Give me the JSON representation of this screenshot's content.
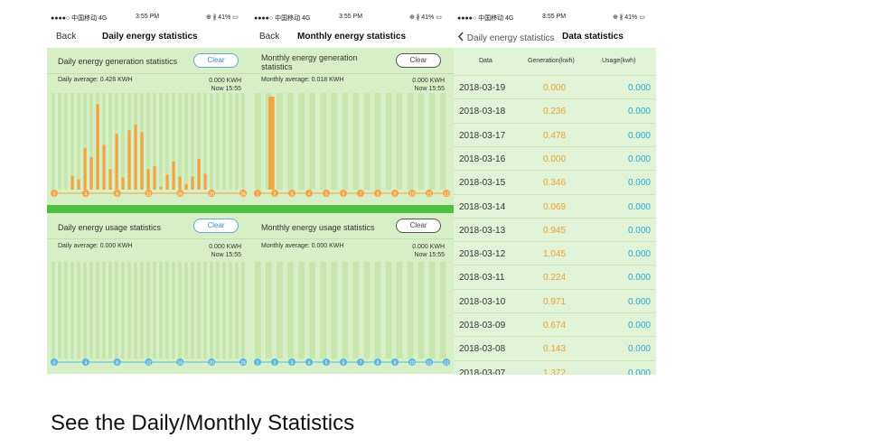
{
  "status_bar": {
    "carrier": "●●●●○ 中国移动  4G",
    "time": "3:55 PM",
    "battery": "⊕ ∦ 41% ▭"
  },
  "screen1": {
    "nav": {
      "back": "Back",
      "title": "Daily energy statistics"
    },
    "gen": {
      "title": "Daily energy generation statistics",
      "clear": "Clear",
      "average": "Daily average: 0.426 KWH",
      "kwh": "0.000 KWH",
      "now": "Now 15:55",
      "bars": [
        0,
        0,
        0,
        0.15,
        0.11,
        0.45,
        0.35,
        0.92,
        0.48,
        0.22,
        0.6,
        0.13,
        0.64,
        0.7,
        0.62,
        0.22,
        0.25,
        0.03,
        0.16,
        0.3,
        0.14,
        0.06,
        0.14,
        0.33,
        0.17,
        0,
        0,
        0,
        0,
        0,
        0
      ],
      "x_ticks": [
        "0",
        "4",
        "8",
        "12",
        "16",
        "20",
        "24"
      ]
    },
    "use": {
      "title": "Daily energy usage statistics",
      "clear": "Clear",
      "average": "Daily average: 0.000 KWH",
      "kwh": "0.000 KWH",
      "now": "Now 15:55",
      "x_ticks": [
        "0",
        "4",
        "8",
        "12",
        "16",
        "20",
        "24"
      ]
    }
  },
  "screen2": {
    "nav": {
      "back": "Back",
      "title": "Monthly energy statistics"
    },
    "gen": {
      "title": "Monthly energy generation statistics",
      "clear": "Clear",
      "average": "Monthly average: 0.018 KWH",
      "kwh": "0.000 KWH",
      "now": "Now 15:55",
      "bars": [
        0,
        0,
        0,
        0,
        0,
        0,
        0,
        0,
        0,
        0,
        0,
        0,
        0,
        0,
        0,
        0,
        0,
        0
      ],
      "highlight_index": 1,
      "highlight_value": 1.0,
      "x_ticks": [
        "1",
        "2",
        "3",
        "4",
        "5",
        "6",
        "7",
        "8",
        "9",
        "10",
        "11",
        "12"
      ]
    },
    "use": {
      "title": "Monthly energy usage statistics",
      "clear": "Clear",
      "average": "Monthly average: 0.000 KWH",
      "kwh": "0.000 KWH",
      "now": "Now 15:55",
      "x_ticks": [
        "1",
        "2",
        "3",
        "4",
        "5",
        "6",
        "7",
        "8",
        "9",
        "10",
        "11",
        "12"
      ]
    }
  },
  "screen3": {
    "nav": {
      "back": "Daily energy statistics",
      "title": "Data statistics"
    },
    "headers": [
      "Data",
      "Generation(kwh)",
      "Usage(kwh)"
    ],
    "rows": [
      {
        "date": "2018-03-19",
        "gen": "0.000",
        "use": "0.000"
      },
      {
        "date": "2018-03-18",
        "gen": "0.236",
        "use": "0.000"
      },
      {
        "date": "2018-03-17",
        "gen": "0.478",
        "use": "0.000"
      },
      {
        "date": "2018-03-16",
        "gen": "0.000",
        "use": "0.000"
      },
      {
        "date": "2018-03-15",
        "gen": "0.346",
        "use": "0.000"
      },
      {
        "date": "2018-03-14",
        "gen": "0.069",
        "use": "0.000"
      },
      {
        "date": "2018-03-13",
        "gen": "0.945",
        "use": "0.000"
      },
      {
        "date": "2018-03-12",
        "gen": "1.045",
        "use": "0.000"
      },
      {
        "date": "2018-03-11",
        "gen": "0.224",
        "use": "0.000"
      },
      {
        "date": "2018-03-10",
        "gen": "0.971",
        "use": "0.000"
      },
      {
        "date": "2018-03-09",
        "gen": "0.674",
        "use": "0.000"
      },
      {
        "date": "2018-03-08",
        "gen": "0.143",
        "use": "0.000"
      },
      {
        "date": "2018-03-07",
        "gen": "1.372",
        "use": "0.000"
      }
    ]
  },
  "caption": "See the Daily/Monthly Statistics",
  "colors": {
    "panel": "#d6efc6",
    "stripe": "#c6e6ae",
    "bar": "#f5a442",
    "strip": "#4fbf43",
    "gen_text": "#f0a030",
    "use_text": "#2ba6d6"
  }
}
